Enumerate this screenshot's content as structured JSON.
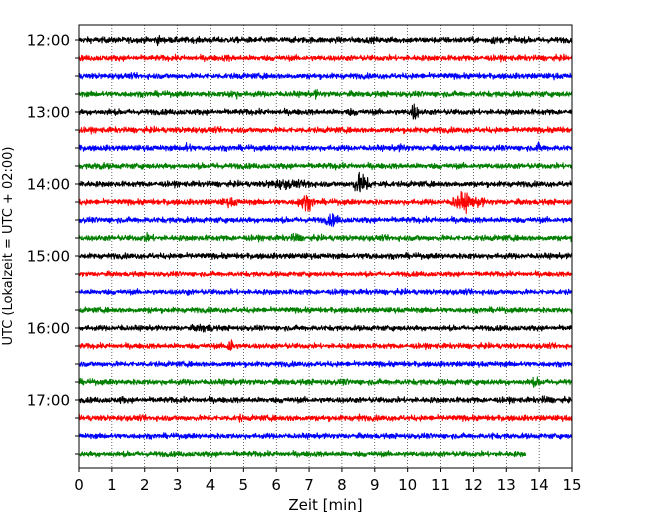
{
  "chart_data": {
    "type": "line",
    "subtype": "helicorder",
    "title": "",
    "xlabel": "Zeit  [min]",
    "ylabel": "UTC (Lokalzeit = UTC + 02:00)",
    "xlim": [
      0,
      15
    ],
    "x_ticks": [
      "0",
      "1",
      "2",
      "3",
      "4",
      "5",
      "6",
      "7",
      "8",
      "9",
      "10",
      "11",
      "12",
      "13",
      "14",
      "15"
    ],
    "y_tick_labels": [
      "12:00",
      "13:00",
      "14:00",
      "15:00",
      "16:00",
      "17:00"
    ],
    "y_tick_line_index": [
      0,
      4,
      8,
      12,
      16,
      20
    ],
    "grid": "vertical dotted at each minute",
    "line_colors": [
      "#000000",
      "#ff0000",
      "#0000ff",
      "#007f00"
    ],
    "traces": [
      {
        "start": "12:00",
        "amp": 0.9,
        "events": [
          [
            2.4,
            1.6,
            0.12
          ],
          [
            9.0,
            1.0,
            0.3
          ],
          [
            12.6,
            1.3,
            0.25
          ]
        ]
      },
      {
        "start": "12:15",
        "amp": 0.85,
        "events": [
          [
            4.5,
            1.1,
            0.35
          ],
          [
            12.8,
            0.7,
            0.3
          ]
        ]
      },
      {
        "start": "12:30",
        "amp": 0.85,
        "events": [
          [
            4.8,
            1.3,
            0.1
          ],
          [
            10.3,
            0.8,
            0.3
          ],
          [
            14.5,
            1.0,
            0.25
          ]
        ]
      },
      {
        "start": "12:45",
        "amp": 0.85,
        "events": [
          [
            4.7,
            1.5,
            0.3
          ],
          [
            7.2,
            1.6,
            0.1
          ]
        ]
      },
      {
        "start": "13:00",
        "amp": 0.85,
        "events": [
          [
            0.9,
            1.1,
            0.2
          ],
          [
            8.3,
            1.2,
            0.35
          ],
          [
            10.2,
            3.0,
            0.15
          ]
        ]
      },
      {
        "start": "13:15",
        "amp": 0.85,
        "events": [
          [
            3.4,
            1.0,
            0.4
          ],
          [
            7.4,
            0.8,
            0.3
          ],
          [
            14.6,
            1.2,
            0.15
          ]
        ]
      },
      {
        "start": "13:30",
        "amp": 0.85,
        "events": [
          [
            3.3,
            1.8,
            0.2
          ],
          [
            9.8,
            1.2,
            0.4
          ],
          [
            14.0,
            1.6,
            0.2
          ]
        ]
      },
      {
        "start": "13:45",
        "amp": 0.85,
        "events": [
          [
            0.6,
            1.3,
            0.3
          ],
          [
            4.2,
            1.2,
            0.15
          ],
          [
            7.8,
            1.0,
            0.4
          ]
        ]
      },
      {
        "start": "14:00",
        "amp": 0.85,
        "events": [
          [
            0.2,
            1.5,
            0.1
          ],
          [
            6.2,
            1.6,
            0.8
          ],
          [
            7.0,
            1.7,
            0.2
          ],
          [
            8.6,
            3.5,
            0.3
          ],
          [
            9.3,
            1.2,
            0.3
          ]
        ]
      },
      {
        "start": "14:15",
        "amp": 0.85,
        "events": [
          [
            4.6,
            1.5,
            0.4
          ],
          [
            6.9,
            2.6,
            0.3
          ],
          [
            11.7,
            3.0,
            0.4
          ],
          [
            12.2,
            1.8,
            0.2
          ]
        ]
      },
      {
        "start": "14:30",
        "amp": 0.85,
        "events": [
          [
            3.2,
            1.0,
            0.3
          ],
          [
            7.7,
            2.0,
            0.3
          ],
          [
            13.1,
            0.8,
            0.3
          ]
        ]
      },
      {
        "start": "14:45",
        "amp": 0.85,
        "events": [
          [
            2.1,
            1.4,
            0.3
          ],
          [
            6.6,
            1.7,
            0.2
          ],
          [
            10.3,
            1.0,
            0.3
          ]
        ]
      },
      {
        "start": "15:00",
        "amp": 0.85,
        "events": [
          [
            2.2,
            1.0,
            0.15
          ],
          [
            4.7,
            0.9,
            0.15
          ],
          [
            8.8,
            1.2,
            0.4
          ],
          [
            11.9,
            1.1,
            0.15
          ]
        ]
      },
      {
        "start": "15:15",
        "amp": 0.75,
        "events": [
          [
            8.0,
            0.7,
            0.3
          ]
        ]
      },
      {
        "start": "15:30",
        "amp": 0.8,
        "events": [
          [
            3.3,
            1.3,
            0.1
          ],
          [
            9.2,
            0.8,
            0.3
          ]
        ]
      },
      {
        "start": "15:45",
        "amp": 0.8,
        "events": [
          [
            2.2,
            1.0,
            0.3
          ],
          [
            8.6,
            0.7,
            0.2
          ]
        ]
      },
      {
        "start": "16:00",
        "amp": 0.8,
        "events": [
          [
            1.3,
            1.1,
            0.2
          ],
          [
            3.8,
            1.4,
            0.5
          ],
          [
            8.0,
            0.8,
            0.3
          ]
        ]
      },
      {
        "start": "16:15",
        "amp": 0.8,
        "events": [
          [
            4.6,
            2.8,
            0.15
          ],
          [
            6.3,
            0.9,
            0.3
          ]
        ]
      },
      {
        "start": "16:30",
        "amp": 0.8,
        "events": [
          [
            7.5,
            0.8,
            0.3
          ],
          [
            12.4,
            0.7,
            0.3
          ]
        ]
      },
      {
        "start": "16:45",
        "amp": 0.85,
        "events": [
          [
            8.1,
            1.0,
            0.3
          ],
          [
            13.9,
            1.4,
            0.4
          ]
        ]
      },
      {
        "start": "17:00",
        "amp": 0.85,
        "events": [
          [
            1.3,
            1.2,
            0.2
          ],
          [
            6.2,
            1.0,
            0.3
          ],
          [
            14.2,
            1.3,
            0.3
          ]
        ]
      },
      {
        "start": "17:15",
        "amp": 0.85,
        "events": [
          [
            4.9,
            1.4,
            0.1
          ],
          [
            6.5,
            1.2,
            0.2
          ],
          [
            8.5,
            1.4,
            0.1
          ]
        ]
      },
      {
        "start": "17:30",
        "amp": 0.8,
        "events": [
          [
            4.1,
            0.9,
            0.2
          ],
          [
            12.6,
            1.2,
            0.2
          ]
        ]
      },
      {
        "start": "17:45",
        "amp": 0.8,
        "end_min": 13.6,
        "events": [
          [
            2.6,
            0.8,
            0.3
          ],
          [
            6.0,
            0.7,
            0.3
          ],
          [
            11.1,
            0.8,
            0.3
          ]
        ]
      }
    ]
  }
}
